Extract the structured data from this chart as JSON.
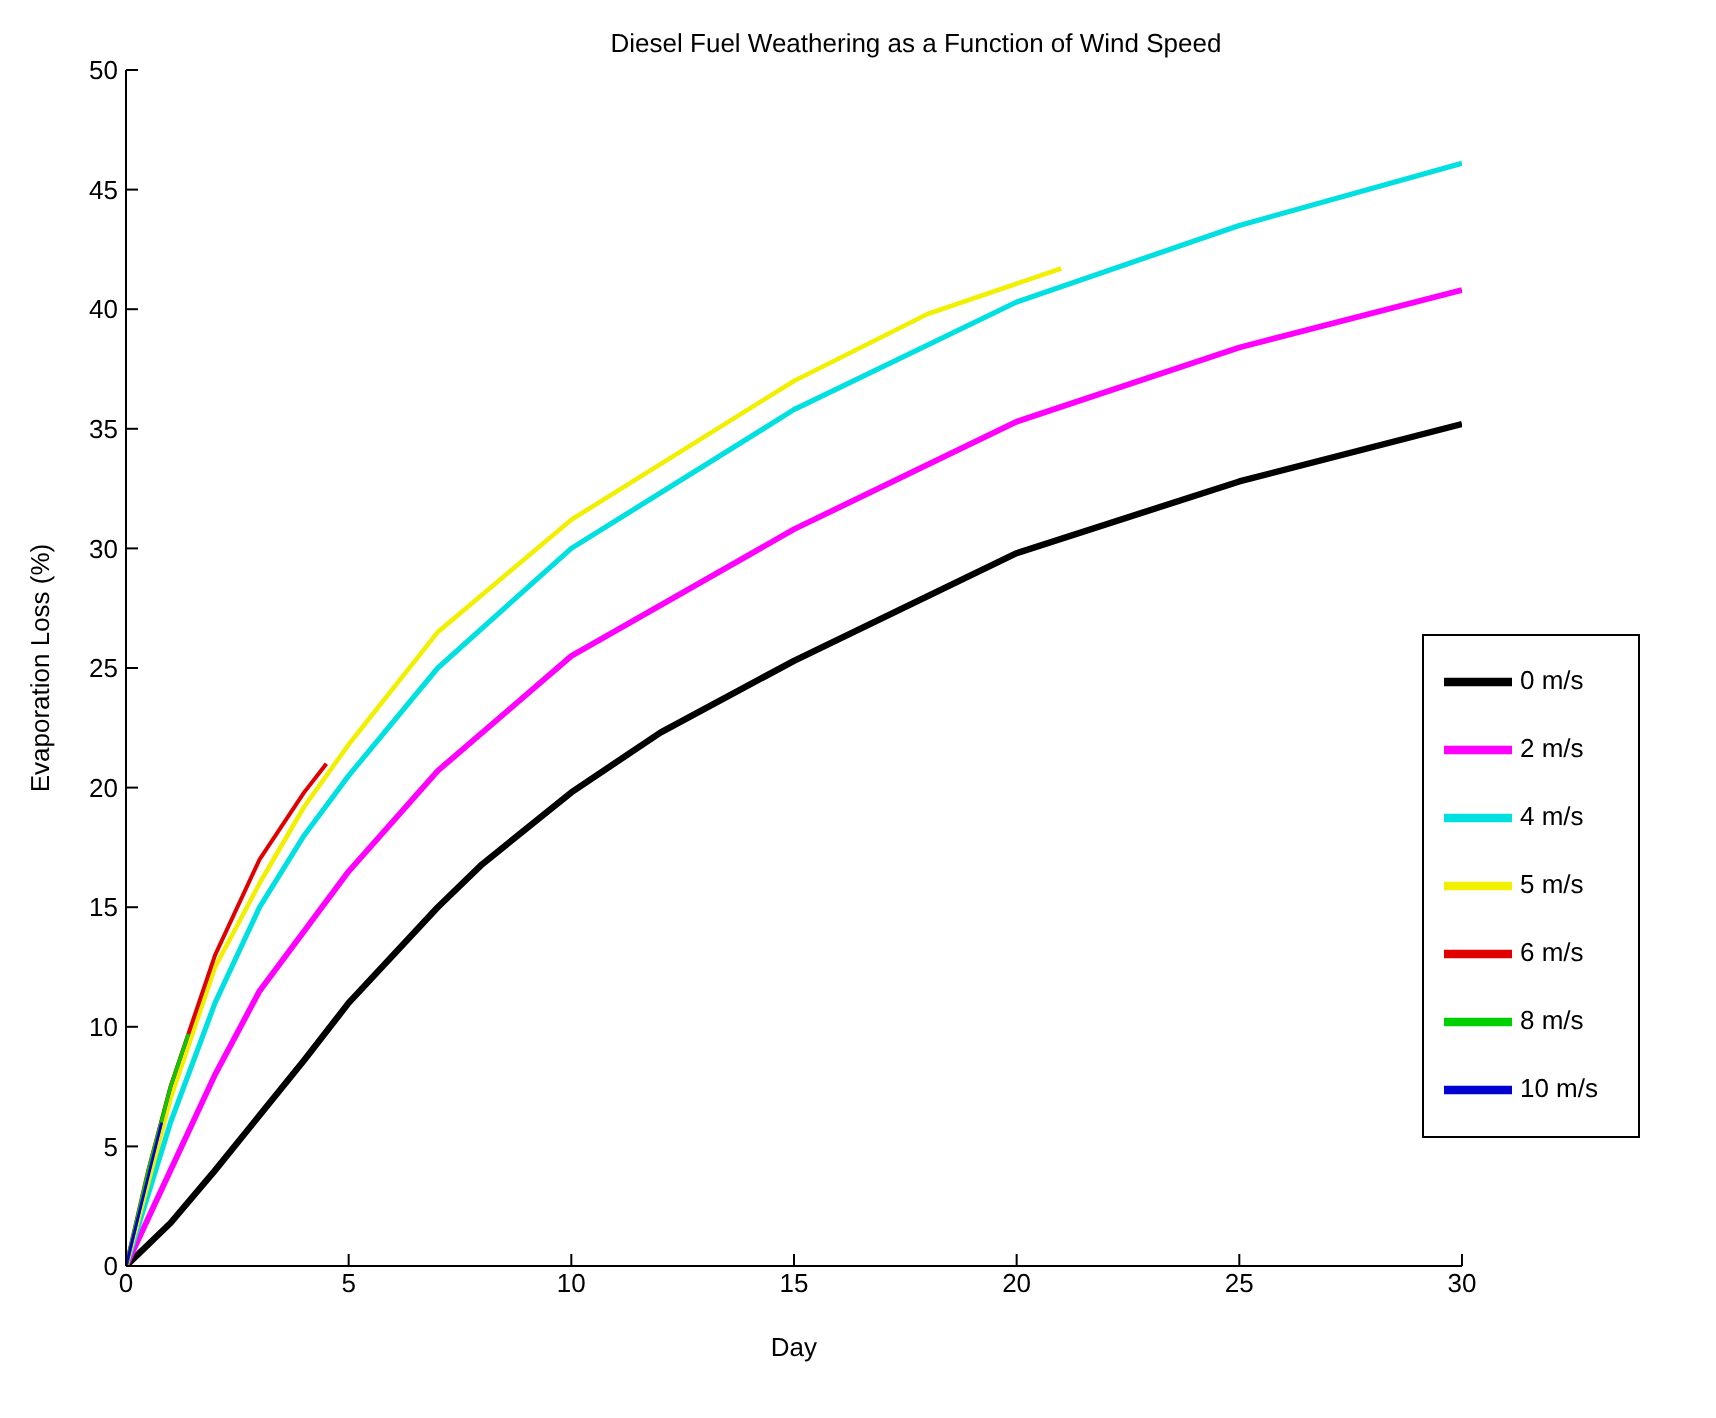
{
  "chart_data": {
    "type": "line",
    "title": "Diesel Fuel Weathering as a Function of Wind Speed",
    "xlabel": "Day",
    "ylabel": "Evaporation Loss (%)",
    "xlim": [
      0,
      30
    ],
    "xticks": [
      0,
      5,
      10,
      15,
      20,
      25,
      30
    ],
    "ylim": [
      0,
      50
    ],
    "yticks": [
      0,
      5,
      10,
      15,
      20,
      25,
      30,
      35,
      40,
      45,
      50
    ],
    "grid": false,
    "legend": "right",
    "marker": "none",
    "line_style": "solid",
    "series": [
      {
        "name": "0 m/s",
        "color": "#000000",
        "x": [
          0,
          1,
          2,
          3,
          4,
          5,
          7,
          8,
          10,
          12,
          15,
          20,
          25,
          30
        ],
        "values": [
          0,
          1.8,
          4,
          6.3,
          8.6,
          11,
          15,
          16.8,
          19.8,
          22.3,
          25.3,
          29.8,
          32.8,
          35.2
        ]
      },
      {
        "name": "2 m/s",
        "color": "#ff00ff",
        "x": [
          0,
          1,
          2,
          3,
          5,
          7,
          10,
          15,
          20,
          25,
          30
        ],
        "values": [
          0,
          4,
          8,
          11.5,
          16.5,
          20.7,
          25.5,
          30.8,
          35.3,
          38.4,
          40.8
        ]
      },
      {
        "name": "4 m/s",
        "color": "#00e0e0",
        "x": [
          0,
          1,
          2,
          3,
          4,
          5,
          7,
          10,
          15,
          20,
          25,
          30
        ],
        "values": [
          0,
          6,
          11,
          15,
          18,
          20.5,
          25,
          30,
          35.8,
          40.3,
          43.5,
          46.1
        ]
      },
      {
        "name": "5 m/s",
        "color": "#f0f000",
        "x": [
          0,
          1,
          2,
          3,
          4,
          5,
          7,
          10,
          15,
          18,
          21
        ],
        "values": [
          0,
          7,
          12.5,
          16,
          19.2,
          21.8,
          26.5,
          31.2,
          37,
          39.8,
          41.7
        ]
      },
      {
        "name": "6 m/s",
        "color": "#e00000",
        "x": [
          0,
          0.5,
          1,
          2,
          3,
          4,
          4.5
        ],
        "values": [
          0,
          4,
          7.5,
          13,
          17,
          19.8,
          21
        ]
      },
      {
        "name": "8 m/s",
        "color": "#00d000",
        "x": [
          0,
          0.5,
          1,
          1.4
        ],
        "values": [
          0,
          4,
          7.5,
          9.7
        ]
      },
      {
        "name": "10 m/s",
        "color": "#0000d0",
        "x": [
          0,
          0.4,
          0.8
        ],
        "values": [
          0,
          3,
          6
        ]
      }
    ]
  }
}
